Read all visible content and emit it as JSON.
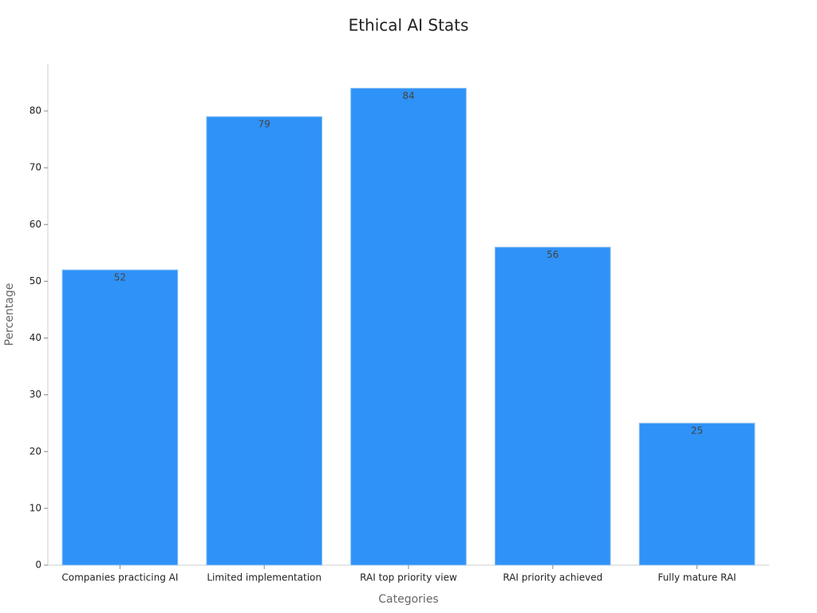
{
  "chart_data": {
    "type": "bar",
    "title": "Ethical AI Stats",
    "x_label": "Categories",
    "y_label": "Percentage",
    "categories": [
      "Companies practicing AI",
      "Limited implementation",
      "RAI top priority view",
      "RAI priority achieved",
      "Fully mature RAI"
    ],
    "values": [
      52,
      79,
      84,
      56,
      25
    ],
    "color": "#2f92f7",
    "ylim": [
      0,
      88.3
    ],
    "yticks": [
      0,
      10,
      20,
      30,
      40,
      50,
      60,
      70,
      80
    ],
    "grid": false
  }
}
